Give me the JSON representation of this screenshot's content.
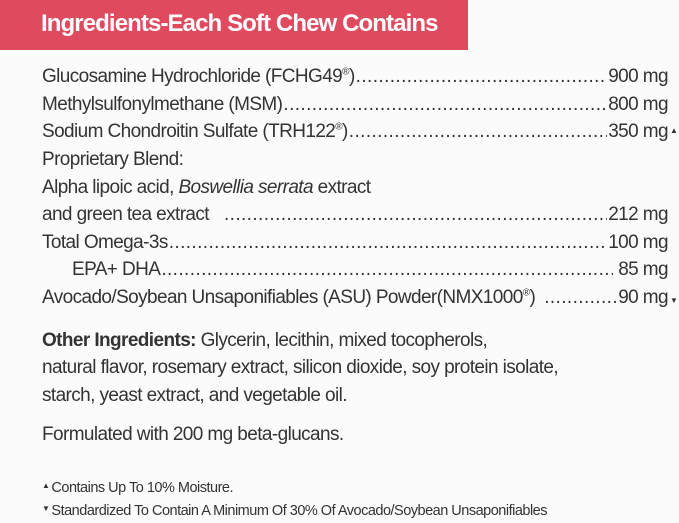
{
  "header": {
    "title": "Ingredients-Each Soft Chew Contains",
    "color": "#e04a5e"
  },
  "ingredients": [
    {
      "name": "Glucosamine Hydrochloride (FCHG49",
      "reg": "®",
      "name_end": ")",
      "amount": "900 mg"
    },
    {
      "name": "Methylsulfonylmethane (MSM)",
      "amount": "800 mg"
    },
    {
      "name": "Sodium Chondroitin Sulfate (TRH122",
      "reg": "®",
      "name_end": ")",
      "amount": "350 mg",
      "mark": "▲"
    },
    {
      "name": "Proprietary Blend:"
    },
    {
      "name_pre": "Alpha lipoic acid, ",
      "name_italic": "Boswellia serrata",
      "name_post": " extract"
    },
    {
      "name": "and green tea extract",
      "amount": "212 mg"
    },
    {
      "name": "Total Omega-3s",
      "amount": "100 mg"
    },
    {
      "name": "EPA+ DHA",
      "amount": "85 mg"
    },
    {
      "name": "Avocado/Soybean Unsaponifiables (ASU) Powder(NMX1000",
      "reg": "®",
      "name_end": ")",
      "amount": "90 mg",
      "mark": "▼"
    }
  ],
  "other": {
    "label": "Other Ingredients:",
    "line1": " Glycerin, lecithin, mixed tocopherols,",
    "line2": "natural flavor, rosemary extract, silicon dioxide, soy protein isolate,",
    "line3": "starch, yeast extract, and vegetable oil."
  },
  "formulated": "Formulated with 200 mg beta-glucans.",
  "footnotes": [
    {
      "symbol": "▲",
      "text": "Contains Up To 10% Moisture."
    },
    {
      "symbol": "▼",
      "text": "Standardized To Contain A Minimum Of 30% Of Avocado/Soybean Unsaponifiables"
    }
  ]
}
